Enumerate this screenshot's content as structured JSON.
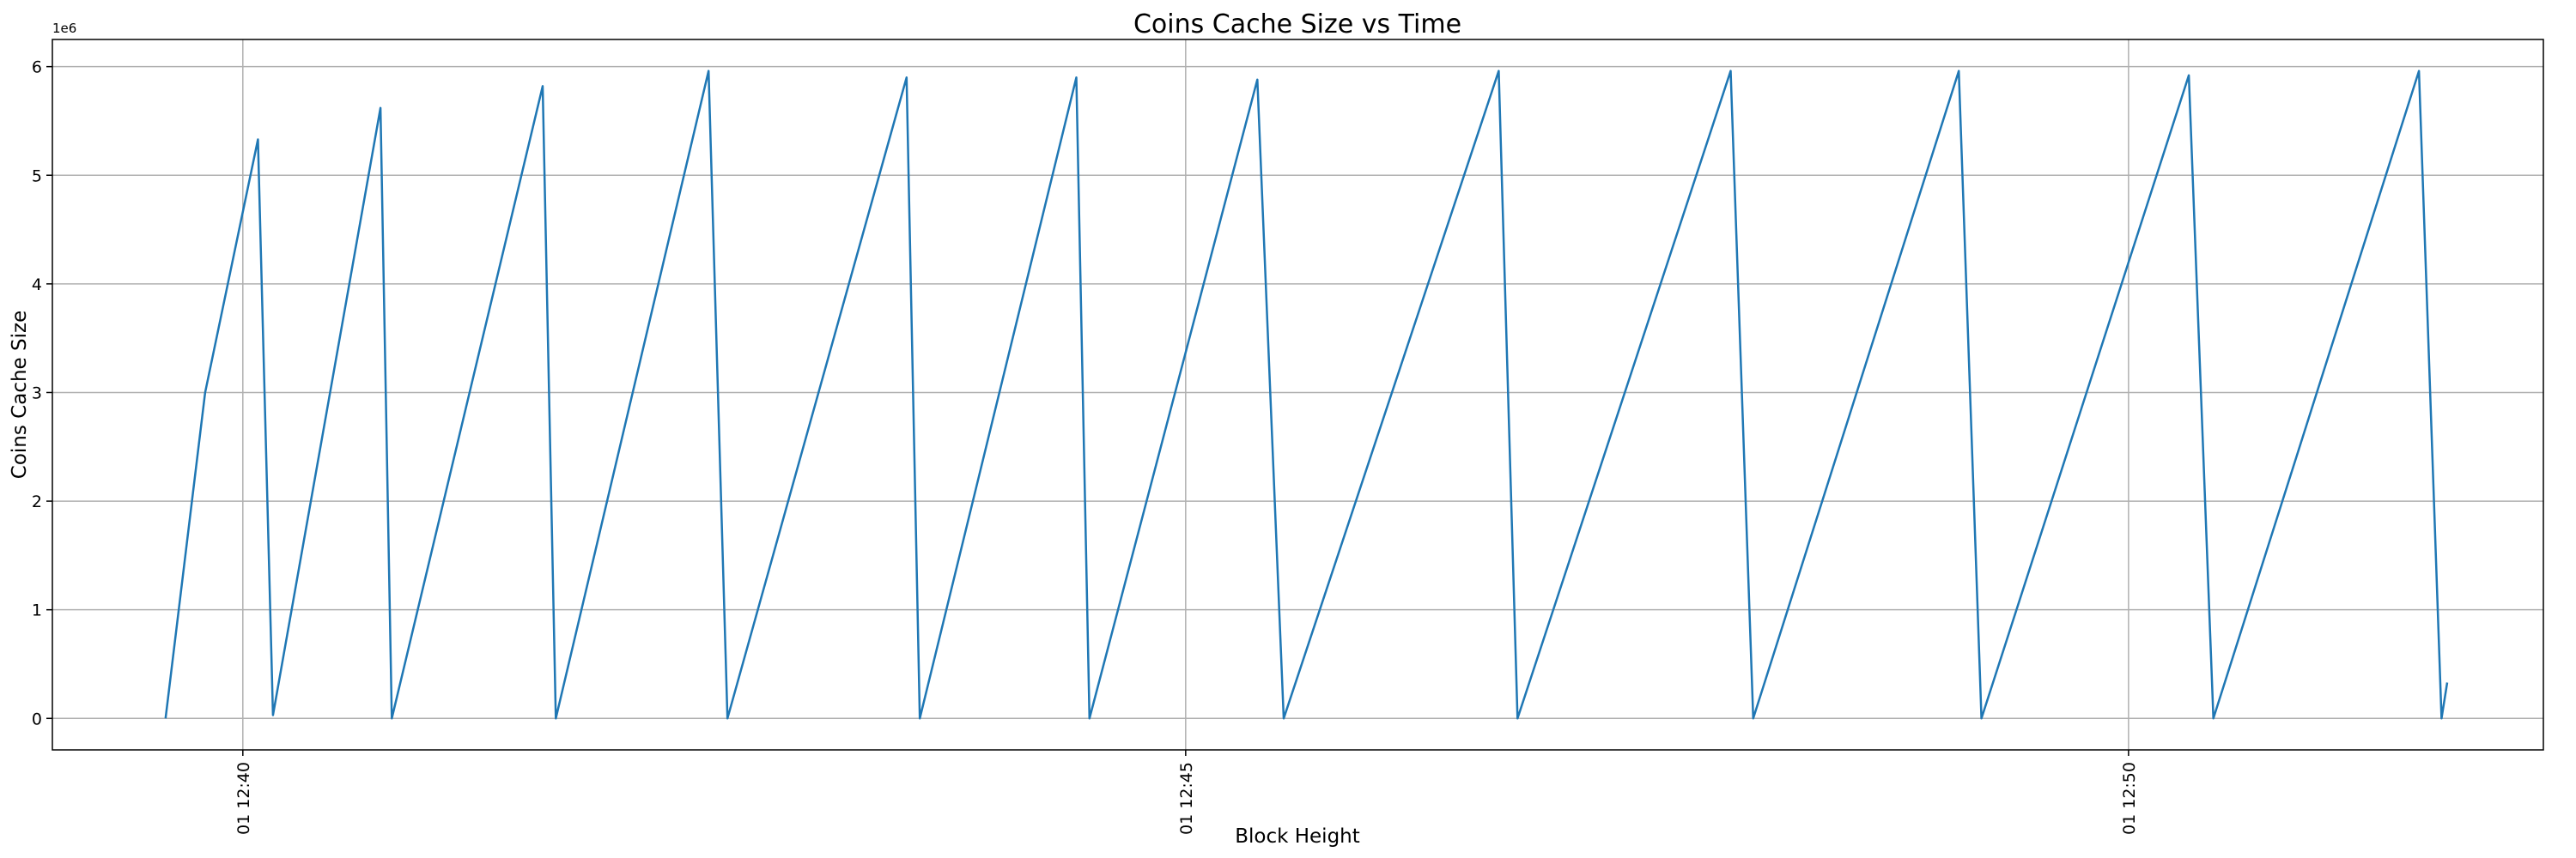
{
  "chart_data": {
    "type": "line",
    "title": "Coins Cache Size vs Time",
    "x_label": "Block Height",
    "y_label": "Coins Cache Size",
    "y_offset_label": "1e6",
    "x": [
      39.59,
      39.8,
      40.08,
      40.16,
      40.73,
      40.79,
      41.59,
      41.66,
      42.47,
      42.57,
      43.52,
      43.59,
      44.42,
      44.49,
      45.38,
      45.52,
      46.66,
      46.76,
      47.89,
      48.01,
      49.1,
      49.22,
      50.32,
      50.45,
      51.54,
      51.66,
      51.69
    ],
    "series": [
      {
        "name": "Coins Cache Size",
        "color": "#1f77b4",
        "values": [
          0,
          3.0,
          5.33,
          0.03,
          5.62,
          0,
          5.82,
          0,
          5.96,
          0,
          5.9,
          0,
          5.9,
          0,
          5.88,
          0,
          5.96,
          0,
          5.96,
          0,
          5.96,
          0,
          5.92,
          0,
          5.96,
          0,
          0.33
        ]
      }
    ],
    "xlim": [
      38.99,
      52.2
    ],
    "xticks": [
      {
        "value": 40,
        "label": "01 12:40"
      },
      {
        "value": 45,
        "label": "01 12:45"
      },
      {
        "value": 50,
        "label": "01 12:50"
      }
    ],
    "ylim": [
      -0.29,
      6.25
    ],
    "yticks": [
      0,
      1,
      2,
      3,
      4,
      5,
      6
    ],
    "grid": true
  }
}
